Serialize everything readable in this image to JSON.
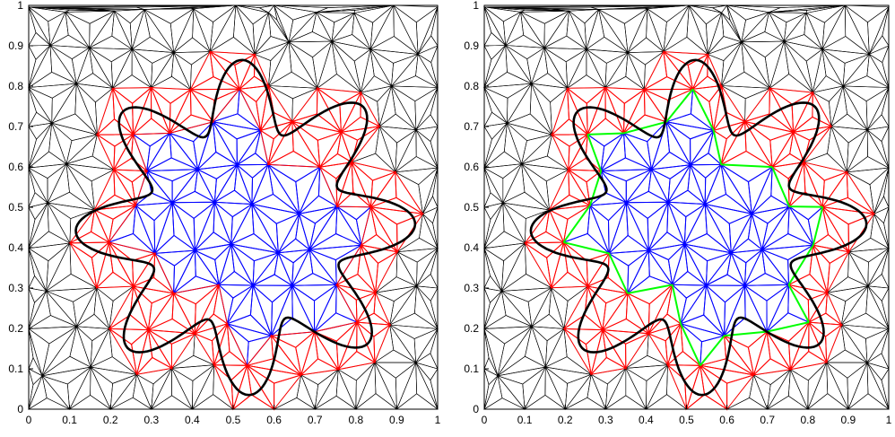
{
  "chart_data": [
    {
      "type": "mesh",
      "panel": "left",
      "xlim": [
        0,
        1
      ],
      "ylim": [
        0,
        1
      ],
      "xticks": [
        0,
        0.1,
        0.2,
        0.3,
        0.4,
        0.5,
        0.6,
        0.7,
        0.8,
        0.9,
        1
      ],
      "xtick_labels": [
        "0",
        "0.1",
        "0.2",
        "0.3",
        "0.4",
        "0.5",
        "0.6",
        "0.7",
        "0.8",
        "0.9",
        "1"
      ],
      "yticks": [
        0,
        0.1,
        0.2,
        0.3,
        0.4,
        0.5,
        0.6,
        0.7,
        0.8,
        0.9,
        1
      ],
      "ytick_labels": [
        "0",
        "0.1",
        "0.2",
        "0.3",
        "0.4",
        "0.5",
        "0.6",
        "0.7",
        "0.8",
        "0.9",
        "1"
      ],
      "interface_curve": {
        "center": [
          0.53,
          0.45
        ],
        "base_radius": 0.33,
        "amplitude": 0.085,
        "lobes": 8,
        "phase_deg": 10,
        "color": "#000000"
      },
      "element_colors": {
        "interior": "#0000ff",
        "cut": "#ff0000",
        "exterior": "#000000"
      },
      "highlight_interior_boundary": false
    },
    {
      "type": "mesh",
      "panel": "right",
      "xlim": [
        0,
        1
      ],
      "ylim": [
        0,
        1
      ],
      "xticks": [
        0,
        0.1,
        0.2,
        0.3,
        0.4,
        0.5,
        0.6,
        0.7,
        0.8,
        0.9,
        1
      ],
      "xtick_labels": [
        "0",
        "0.1",
        "0.2",
        "0.3",
        "0.4",
        "0.5",
        "0.6",
        "0.7",
        "0.8",
        "0.9",
        "1"
      ],
      "yticks": [
        0,
        0.1,
        0.2,
        0.3,
        0.4,
        0.5,
        0.6,
        0.7,
        0.8,
        0.9,
        1
      ],
      "ytick_labels": [
        "0",
        "0.1",
        "0.2",
        "0.3",
        "0.4",
        "0.5",
        "0.6",
        "0.7",
        "0.8",
        "0.9",
        "1"
      ],
      "interface_curve": {
        "center": [
          0.53,
          0.45
        ],
        "base_radius": 0.33,
        "amplitude": 0.085,
        "lobes": 8,
        "phase_deg": 10,
        "color": "#000000"
      },
      "element_colors": {
        "interior": "#0000ff",
        "cut": "#ff0000",
        "exterior": "#000000",
        "interior_boundary": "#00ff00"
      },
      "highlight_interior_boundary": true
    }
  ]
}
